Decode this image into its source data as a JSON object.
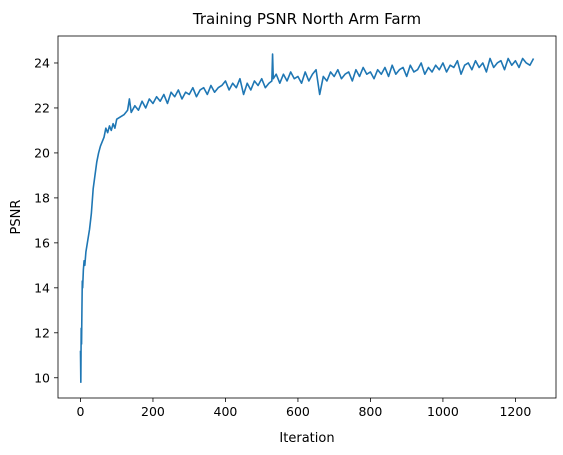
{
  "chart_data": {
    "type": "line",
    "title": "Training PSNR North Arm Farm",
    "xlabel": "Iteration",
    "ylabel": "PSNR",
    "xlim": [
      -62,
      1312
    ],
    "ylim": [
      9.1,
      25.2
    ],
    "x_ticks": [
      0,
      200,
      400,
      600,
      800,
      1000,
      1200
    ],
    "y_ticks": [
      10,
      12,
      14,
      16,
      18,
      20,
      22,
      24
    ],
    "grid": false,
    "line_color": "#1f77b4",
    "series": [
      {
        "x": [
          0,
          1,
          2,
          3,
          4,
          5,
          6,
          8,
          10,
          12,
          15,
          18,
          20,
          25,
          30,
          35,
          40,
          45,
          50,
          55,
          60,
          65,
          70,
          75,
          80,
          85,
          90,
          95,
          100,
          110,
          120,
          130,
          135,
          140,
          150,
          160,
          170,
          180,
          190,
          200,
          210,
          220,
          230,
          240,
          250,
          260,
          270,
          280,
          290,
          300,
          310,
          320,
          330,
          340,
          350,
          360,
          370,
          380,
          390,
          400,
          410,
          420,
          430,
          440,
          450,
          460,
          470,
          480,
          490,
          500,
          510,
          520,
          528,
          530,
          532,
          540,
          550,
          560,
          570,
          580,
          590,
          600,
          610,
          620,
          630,
          640,
          650,
          660,
          670,
          680,
          690,
          700,
          710,
          720,
          730,
          740,
          750,
          760,
          770,
          780,
          790,
          800,
          810,
          820,
          830,
          840,
          850,
          860,
          870,
          880,
          890,
          900,
          910,
          920,
          930,
          940,
          950,
          960,
          970,
          980,
          990,
          1000,
          1010,
          1020,
          1030,
          1040,
          1050,
          1060,
          1070,
          1080,
          1090,
          1100,
          1110,
          1120,
          1130,
          1140,
          1150,
          1160,
          1170,
          1180,
          1190,
          1200,
          1210,
          1220,
          1230,
          1240,
          1250
        ],
        "y": [
          11.2,
          9.8,
          12.2,
          11.5,
          13.0,
          14.3,
          14.0,
          14.8,
          15.2,
          15.0,
          15.6,
          15.9,
          16.1,
          16.6,
          17.3,
          18.4,
          19.0,
          19.6,
          20.0,
          20.3,
          20.5,
          20.7,
          21.1,
          20.9,
          21.2,
          21.0,
          21.3,
          21.1,
          21.5,
          21.6,
          21.7,
          21.9,
          22.4,
          21.8,
          22.1,
          21.9,
          22.3,
          22.0,
          22.4,
          22.2,
          22.5,
          22.3,
          22.6,
          22.2,
          22.7,
          22.5,
          22.8,
          22.4,
          22.7,
          22.6,
          22.9,
          22.5,
          22.8,
          22.9,
          22.6,
          23.0,
          22.7,
          22.9,
          23.0,
          23.2,
          22.8,
          23.1,
          22.9,
          23.3,
          22.6,
          23.1,
          22.8,
          23.2,
          23.0,
          23.3,
          22.9,
          23.1,
          23.2,
          24.4,
          23.3,
          23.5,
          23.1,
          23.5,
          23.2,
          23.6,
          23.3,
          23.4,
          23.1,
          23.6,
          23.2,
          23.5,
          23.7,
          22.6,
          23.4,
          23.2,
          23.6,
          23.4,
          23.7,
          23.3,
          23.5,
          23.6,
          23.2,
          23.7,
          23.4,
          23.8,
          23.5,
          23.6,
          23.3,
          23.7,
          23.5,
          23.8,
          23.4,
          23.9,
          23.5,
          23.7,
          23.8,
          23.4,
          23.9,
          23.6,
          23.7,
          24.0,
          23.5,
          23.8,
          23.6,
          23.9,
          23.7,
          24.0,
          23.6,
          23.9,
          23.8,
          24.1,
          23.5,
          23.9,
          24.0,
          23.7,
          24.1,
          23.8,
          24.0,
          23.6,
          24.2,
          23.8,
          24.0,
          24.1,
          23.7,
          24.2,
          23.9,
          24.1,
          23.8,
          24.2,
          24.0,
          23.9,
          24.2
        ]
      }
    ]
  }
}
